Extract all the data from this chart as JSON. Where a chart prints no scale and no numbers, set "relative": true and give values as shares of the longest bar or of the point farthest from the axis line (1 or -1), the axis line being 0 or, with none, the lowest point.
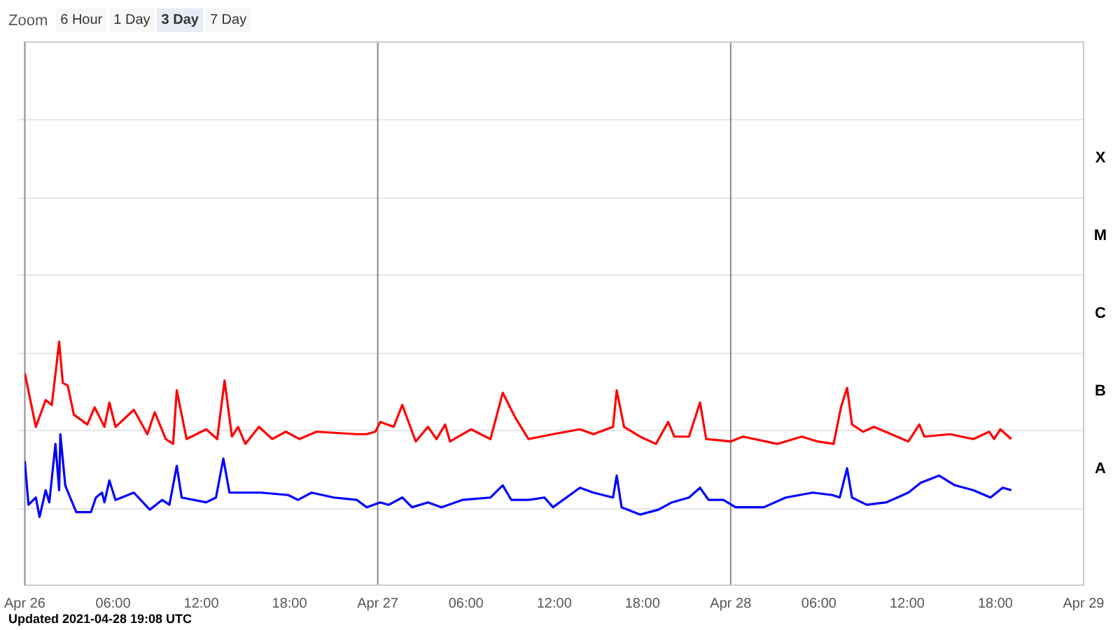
{
  "chart_data": {
    "type": "line",
    "relative": true,
    "grid": "y",
    "legend": false,
    "marker": "none",
    "line_style": "solid",
    "xlim": [
      "2021-04-26T00:00",
      "2021-04-29T00:00"
    ],
    "xticks": [
      {
        "value": "2021-04-26T00:00",
        "label": "Apr 26"
      },
      {
        "value": "2021-04-26T06:00",
        "label": "06:00"
      },
      {
        "value": "2021-04-26T12:00",
        "label": "12:00"
      },
      {
        "value": "2021-04-26T18:00",
        "label": "18:00"
      },
      {
        "value": "2021-04-27T00:00",
        "label": "Apr 27"
      },
      {
        "value": "2021-04-27T06:00",
        "label": "06:00"
      },
      {
        "value": "2021-04-27T12:00",
        "label": "12:00"
      },
      {
        "value": "2021-04-27T18:00",
        "label": "18:00"
      },
      {
        "value": "2021-04-28T00:00",
        "label": "Apr 28"
      },
      {
        "value": "2021-04-28T06:00",
        "label": "06:00"
      },
      {
        "value": "2021-04-28T12:00",
        "label": "12:00"
      },
      {
        "value": "2021-04-28T18:00",
        "label": "18:00"
      },
      {
        "value": "2021-04-29T00:00",
        "label": "Apr 29"
      }
    ],
    "ref_lines": [
      {
        "axis": "x",
        "value": "2021-04-27T00:00",
        "color": "#888888"
      },
      {
        "axis": "x",
        "value": "2021-04-28T00:00",
        "color": "#888888"
      }
    ],
    "annotations": [
      "Zoom",
      "6 Hour",
      "1 Day",
      "3 Day",
      "7 Day",
      "Updated 2021-04-28 19:08 UTC",
      "A",
      "B",
      "C",
      "M",
      "X"
    ],
    "series": [
      {
        "color": "#ff0000",
        "x": [
          "2021-04-26T00:00",
          "2021-04-26T00:45",
          "2021-04-26T01:25",
          "2021-04-26T01:50",
          "2021-04-26T02:10",
          "2021-04-26T02:20",
          "2021-04-26T02:35",
          "2021-04-26T02:55",
          "2021-04-26T03:20",
          "2021-04-26T04:15",
          "2021-04-26T04:45",
          "2021-04-26T05:25",
          "2021-04-26T05:45",
          "2021-04-26T06:10",
          "2021-04-26T07:25",
          "2021-04-26T08:20",
          "2021-04-26T08:50",
          "2021-04-26T09:35",
          "2021-04-26T10:05",
          "2021-04-26T10:20",
          "2021-04-26T11:00",
          "2021-04-26T12:20",
          "2021-04-26T13:05",
          "2021-04-26T13:35",
          "2021-04-26T14:05",
          "2021-04-26T14:30",
          "2021-04-26T15:00",
          "2021-04-26T15:55",
          "2021-04-26T16:50",
          "2021-04-26T17:45",
          "2021-04-26T18:40",
          "2021-04-26T19:50",
          "2021-04-26T22:35",
          "2021-04-26T23:15",
          "2021-04-26T23:50",
          "2021-04-27T00:10",
          "2021-04-27T01:05",
          "2021-04-27T01:40",
          "2021-04-27T02:35",
          "2021-04-27T03:25",
          "2021-04-27T04:00",
          "2021-04-27T04:35",
          "2021-04-27T04:55",
          "2021-04-27T06:20",
          "2021-04-27T07:40",
          "2021-04-27T08:30",
          "2021-04-27T09:20",
          "2021-04-27T10:15",
          "2021-04-27T11:55",
          "2021-04-27T13:45",
          "2021-04-27T14:40",
          "2021-04-27T16:00",
          "2021-04-27T16:15",
          "2021-04-27T16:45",
          "2021-04-27T17:50",
          "2021-04-27T18:55",
          "2021-04-27T19:45",
          "2021-04-27T20:10",
          "2021-04-27T21:10",
          "2021-04-27T21:55",
          "2021-04-27T22:20",
          "2021-04-28T00:00",
          "2021-04-28T00:50",
          "2021-04-28T03:10",
          "2021-04-28T04:50",
          "2021-04-28T05:55",
          "2021-04-28T07:00",
          "2021-04-28T07:30",
          "2021-04-28T07:55",
          "2021-04-28T08:15",
          "2021-04-28T09:00",
          "2021-04-28T09:45",
          "2021-04-28T10:55",
          "2021-04-28T12:05",
          "2021-04-28T12:50",
          "2021-04-28T13:10",
          "2021-04-28T14:55",
          "2021-04-28T16:30",
          "2021-04-28T17:35",
          "2021-04-28T17:55",
          "2021-04-28T18:20",
          "2021-04-28T19:05"
        ],
        "values": [
          0.87,
          0.65,
          0.76,
          0.74,
          0.91,
          1,
          0.83,
          0.82,
          0.7,
          0.66,
          0.73,
          0.65,
          0.75,
          0.65,
          0.72,
          0.62,
          0.71,
          0.6,
          0.58,
          0.8,
          0.6,
          0.64,
          0.6,
          0.84,
          0.61,
          0.65,
          0.58,
          0.65,
          0.6,
          0.63,
          0.6,
          0.63,
          0.62,
          0.62,
          0.63,
          0.67,
          0.65,
          0.74,
          0.59,
          0.65,
          0.6,
          0.66,
          0.59,
          0.64,
          0.6,
          0.79,
          0.69,
          0.6,
          0.62,
          0.64,
          0.62,
          0.65,
          0.8,
          0.65,
          0.61,
          0.58,
          0.67,
          0.61,
          0.61,
          0.75,
          0.6,
          0.59,
          0.61,
          0.58,
          0.61,
          0.59,
          0.58,
          0.73,
          0.81,
          0.66,
          0.63,
          0.65,
          0.62,
          0.59,
          0.66,
          0.61,
          0.62,
          0.6,
          0.63,
          0.6,
          0.64,
          0.6
        ]
      },
      {
        "color": "#0000ff",
        "x": [
          "2021-04-26T00:00",
          "2021-04-26T00:15",
          "2021-04-26T00:45",
          "2021-04-26T01:00",
          "2021-04-26T01:25",
          "2021-04-26T01:40",
          "2021-04-26T02:05",
          "2021-04-26T02:20",
          "2021-04-26T02:25",
          "2021-04-26T02:45",
          "2021-04-26T03:05",
          "2021-04-26T03:30",
          "2021-04-26T04:30",
          "2021-04-26T04:50",
          "2021-04-26T05:15",
          "2021-04-26T05:25",
          "2021-04-26T05:45",
          "2021-04-26T06:10",
          "2021-04-26T07:25",
          "2021-04-26T08:30",
          "2021-04-26T09:20",
          "2021-04-26T09:50",
          "2021-04-26T10:20",
          "2021-04-26T10:40",
          "2021-04-26T12:20",
          "2021-04-26T13:00",
          "2021-04-26T13:30",
          "2021-04-26T13:55",
          "2021-04-26T16:05",
          "2021-04-26T17:55",
          "2021-04-26T18:35",
          "2021-04-26T19:30",
          "2021-04-26T21:00",
          "2021-04-26T22:35",
          "2021-04-26T23:15",
          "2021-04-27T00:10",
          "2021-04-27T00:45",
          "2021-04-27T01:40",
          "2021-04-27T02:20",
          "2021-04-27T03:25",
          "2021-04-27T04:20",
          "2021-04-27T05:45",
          "2021-04-27T07:40",
          "2021-04-27T08:30",
          "2021-04-27T09:05",
          "2021-04-27T10:15",
          "2021-04-27T11:20",
          "2021-04-27T11:55",
          "2021-04-27T13:45",
          "2021-04-27T14:40",
          "2021-04-27T16:00",
          "2021-04-27T16:15",
          "2021-04-27T16:35",
          "2021-04-27T17:50",
          "2021-04-27T19:05",
          "2021-04-27T20:00",
          "2021-04-27T21:10",
          "2021-04-27T21:55",
          "2021-04-27T22:30",
          "2021-04-27T23:30",
          "2021-04-28T00:20",
          "2021-04-28T00:55",
          "2021-04-28T02:15",
          "2021-04-28T03:45",
          "2021-04-28T05:35",
          "2021-04-28T06:55",
          "2021-04-28T07:25",
          "2021-04-28T07:55",
          "2021-04-28T08:15",
          "2021-04-28T09:15",
          "2021-04-28T10:35",
          "2021-04-28T12:05",
          "2021-04-28T12:55",
          "2021-04-28T14:10",
          "2021-04-28T15:15",
          "2021-04-28T16:30",
          "2021-04-28T17:40",
          "2021-04-28T18:30",
          "2021-04-28T19:05"
        ],
        "values": [
          0.51,
          0.33,
          0.36,
          0.28,
          0.39,
          0.34,
          0.58,
          0.39,
          0.62,
          0.41,
          0.36,
          0.3,
          0.3,
          0.36,
          0.38,
          0.34,
          0.43,
          0.35,
          0.38,
          0.31,
          0.35,
          0.33,
          0.49,
          0.36,
          0.34,
          0.36,
          0.52,
          0.38,
          0.38,
          0.37,
          0.35,
          0.38,
          0.36,
          0.35,
          0.32,
          0.34,
          0.33,
          0.36,
          0.32,
          0.34,
          0.32,
          0.35,
          0.36,
          0.41,
          0.35,
          0.35,
          0.36,
          0.32,
          0.4,
          0.38,
          0.36,
          0.45,
          0.32,
          0.29,
          0.31,
          0.34,
          0.36,
          0.4,
          0.35,
          0.35,
          0.32,
          0.32,
          0.32,
          0.36,
          0.38,
          0.37,
          0.36,
          0.48,
          0.36,
          0.33,
          0.34,
          0.38,
          0.42,
          0.45,
          0.41,
          0.39,
          0.36,
          0.4,
          0.39
        ]
      }
    ]
  }
}
